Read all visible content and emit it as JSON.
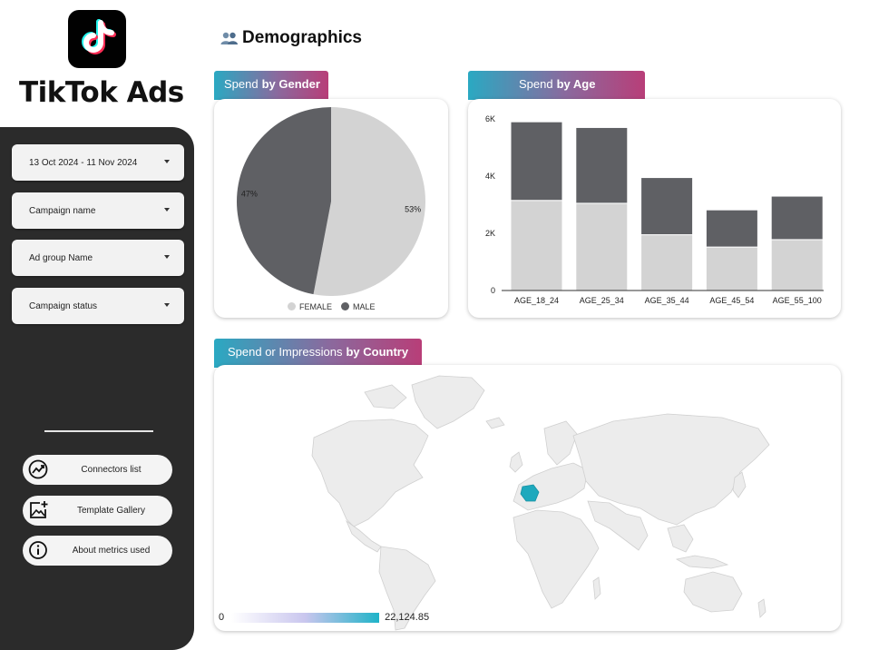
{
  "brand": {
    "app_name": "TikTok Ads",
    "logo_icon": "tiktok-logo-icon"
  },
  "sidebar": {
    "filters": [
      {
        "label": "13 Oct 2024 - 11 Nov 2024"
      },
      {
        "label": "Campaign name"
      },
      {
        "label": "Ad group Name"
      },
      {
        "label": "Campaign status"
      }
    ],
    "links": [
      {
        "label": "Connectors list",
        "icon": "connectors-chart-icon"
      },
      {
        "label": "Template Gallery",
        "icon": "add-image-icon"
      },
      {
        "label": "About metrics used",
        "icon": "info-icon"
      }
    ]
  },
  "header": {
    "title": "Demographics",
    "icon": "people-icon"
  },
  "gender_card": {
    "tab_prefix": "Spend",
    "tab_bold": "by Gender"
  },
  "age_card": {
    "tab_prefix": "Spend",
    "tab_bold": "by Age"
  },
  "country_card": {
    "tab_prefix": "Spend or Impressions",
    "tab_bold": "by Country",
    "scale_min": "0",
    "scale_max": "22,124.85",
    "highlighted_country_color": "#1fa9bd"
  },
  "colors": {
    "female": "#d3d3d3",
    "male": "#5f6064",
    "tab_gradient_start": "#2aa9c2",
    "tab_gradient_end": "#b83e78",
    "sidebar_bg": "#2b2b2b"
  },
  "chart_data": [
    {
      "type": "pie",
      "labels": [
        "FEMALE",
        "MALE"
      ],
      "values": [
        53,
        47
      ],
      "data_labels": [
        "53%",
        "47%"
      ],
      "colors": [
        "#d3d3d3",
        "#5f6064"
      ],
      "legend": "bottom"
    },
    {
      "type": "bar",
      "stacked": true,
      "categories": [
        "AGE_18_24",
        "AGE_25_34",
        "AGE_35_44",
        "AGE_45_54",
        "AGE_55_100"
      ],
      "series": [
        {
          "values": [
            3150,
            3050,
            1950,
            1520,
            1780
          ],
          "color": "#d3d3d3"
        },
        {
          "values": [
            2750,
            2650,
            2000,
            1300,
            1520
          ],
          "color": "#5f6064"
        }
      ],
      "yticks": [
        "0",
        "2K",
        "4K",
        "6K"
      ],
      "ylim": [
        0,
        6000
      ],
      "grid": false,
      "legend": "none"
    }
  ]
}
